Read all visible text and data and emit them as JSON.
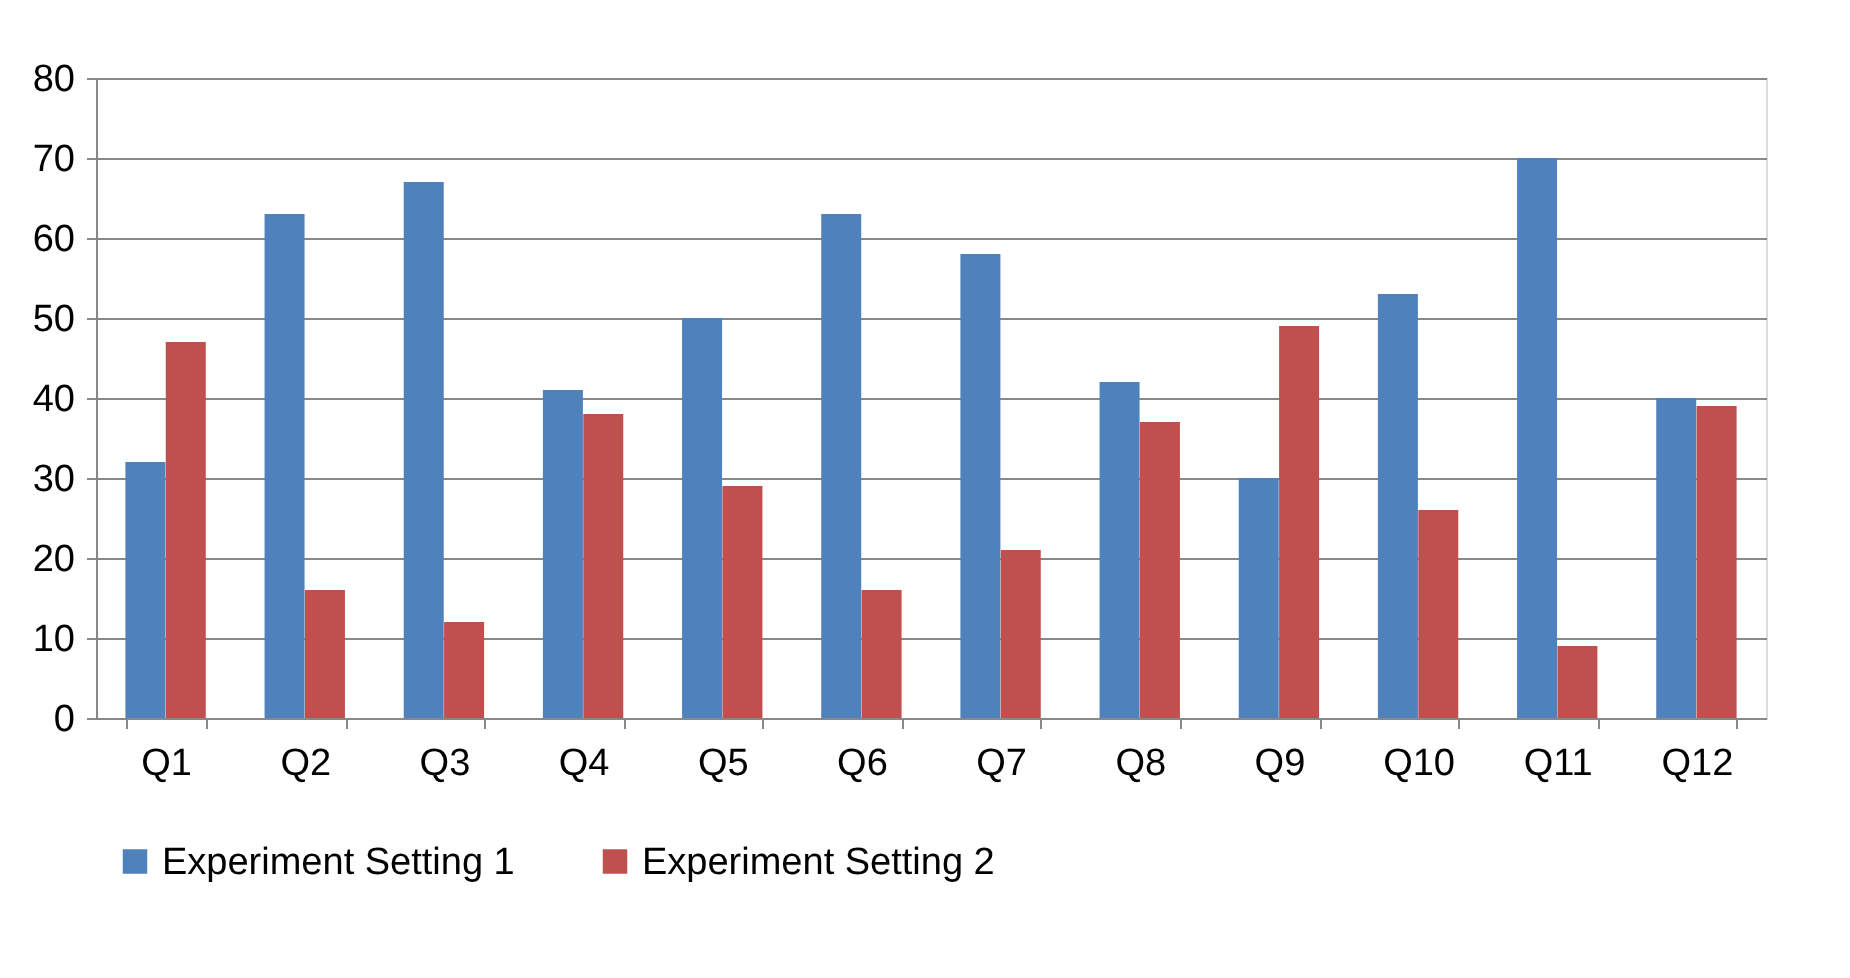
{
  "chart_data": {
    "type": "bar",
    "categories": [
      "Q1",
      "Q2",
      "Q3",
      "Q4",
      "Q5",
      "Q6",
      "Q7",
      "Q8",
      "Q9",
      "Q10",
      "Q11",
      "Q12"
    ],
    "series": [
      {
        "name": "Experiment Setting 1",
        "color": "#4f81bd",
        "values": [
          32,
          63,
          67,
          41,
          50,
          63,
          58,
          42,
          30,
          53,
          70,
          40
        ]
      },
      {
        "name": "Experiment Setting 2",
        "color": "#c0504d",
        "values": [
          47,
          16,
          12,
          38,
          29,
          16,
          21,
          37,
          49,
          26,
          9,
          39
        ]
      }
    ],
    "ylim": [
      0,
      80
    ],
    "yticks": [
      0,
      10,
      20,
      30,
      40,
      50,
      60,
      70,
      80
    ],
    "grid": "y",
    "legend": "bottom"
  }
}
